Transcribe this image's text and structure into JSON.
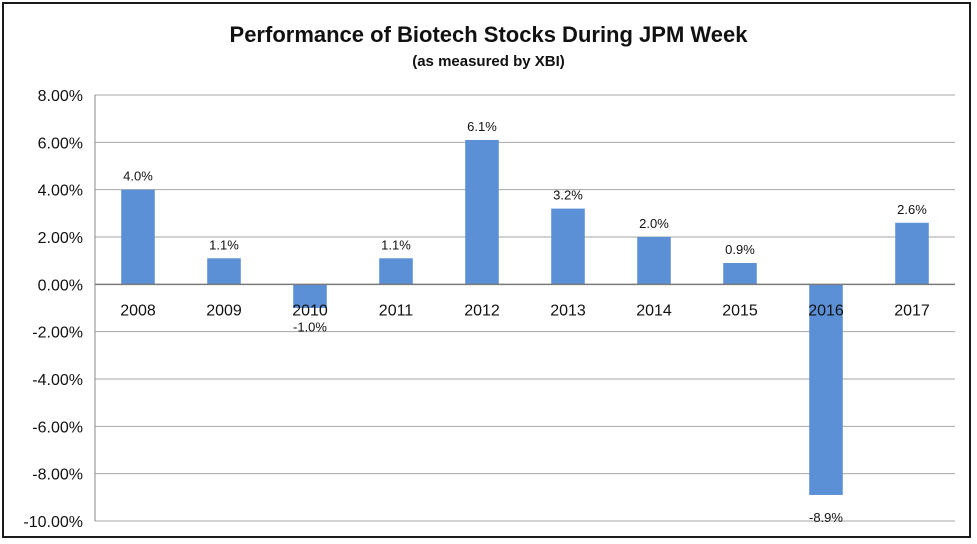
{
  "chart_data": {
    "type": "bar",
    "title": "Performance of Biotech Stocks During JPM Week",
    "subtitle": "(as measured by XBI)",
    "xlabel": "",
    "ylabel": "",
    "categories": [
      "2008",
      "2009",
      "2010",
      "2011",
      "2012",
      "2013",
      "2014",
      "2015",
      "2016",
      "2017"
    ],
    "values": [
      4.0,
      1.1,
      -1.0,
      1.1,
      6.1,
      3.2,
      2.0,
      0.9,
      -8.9,
      2.6
    ],
    "data_labels": [
      "4.0%",
      "1.1%",
      "-1.0%",
      "1.1%",
      "6.1%",
      "3.2%",
      "2.0%",
      "0.9%",
      "-8.9%",
      "2.6%"
    ],
    "ylim": [
      -10,
      8
    ],
    "yticks": [
      8,
      6,
      4,
      2,
      0,
      -2,
      -4,
      -6,
      -8,
      -10
    ],
    "ytick_labels": [
      "8.00%",
      "6.00%",
      "4.00%",
      "2.00%",
      "0.00%",
      "-2.00%",
      "-4.00%",
      "-6.00%",
      "-8.00%",
      "-10.00%"
    ],
    "grid": true,
    "legend": "none",
    "bar_color": "#5b8fd6",
    "grid_color": "#a6a6a6"
  }
}
